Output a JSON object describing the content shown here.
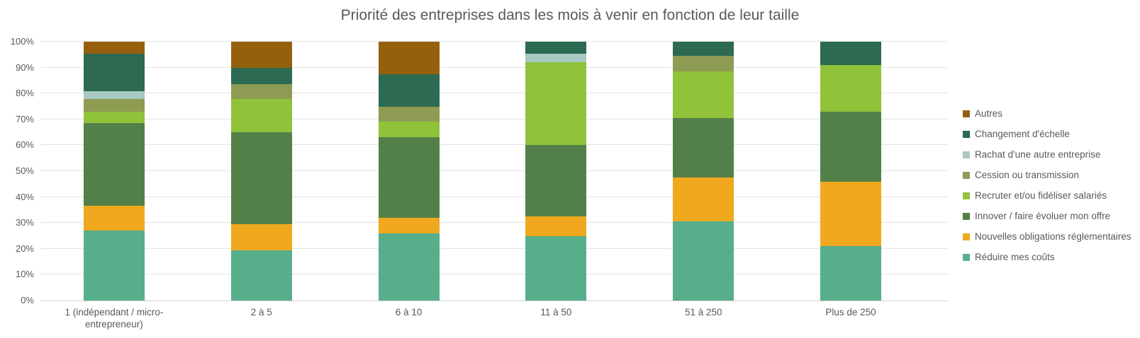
{
  "title": "Priorité des entreprises dans les mois à venir en fonction de leur taille",
  "chart_data": {
    "type": "bar",
    "subtype": "stacked-100-percent",
    "title": "Priorité des entreprises dans les mois à venir en fonction de leur taille",
    "xlabel": "",
    "ylabel": "",
    "ylim": [
      0,
      100
    ],
    "y_ticks": [
      "0%",
      "10%",
      "20%",
      "30%",
      "40%",
      "50%",
      "60%",
      "70%",
      "80%",
      "90%",
      "100%"
    ],
    "grid": "horizontal",
    "legend_position": "right",
    "categories": [
      "1 (indépendant / micro-entrepreneur)",
      "2 à 5",
      "6 à 10",
      "11 à 50",
      "51 à 250",
      "Plus de 250"
    ],
    "series": [
      {
        "name": "Réduire mes coûts",
        "color": "#57AE8B",
        "values": [
          27,
          19.5,
          26,
          25,
          30.5,
          21
        ]
      },
      {
        "name": "Nouvelles obligations réglementaires",
        "color": "#F0A91E",
        "values": [
          9.5,
          10,
          6,
          7.5,
          17,
          25
        ]
      },
      {
        "name": "Innover / faire évoluer mon offre",
        "color": "#538049",
        "values": [
          32,
          35.5,
          31,
          27.5,
          23,
          27
        ]
      },
      {
        "name": "Recruter et/ou fidéliser salariés",
        "color": "#90C23A",
        "values": [
          4.5,
          13,
          6,
          32,
          18,
          18
        ]
      },
      {
        "name": "Cession ou transmission",
        "color": "#8E9B53",
        "values": [
          5,
          5.5,
          6,
          0,
          6,
          0
        ]
      },
      {
        "name": "Rachat d'une autre entreprise",
        "color": "#A7C9C1",
        "values": [
          3,
          0,
          0,
          3.5,
          0,
          0
        ]
      },
      {
        "name": "Changement d'échelle",
        "color": "#2C6A51",
        "values": [
          14.5,
          6.5,
          12.5,
          4.5,
          5.5,
          9
        ]
      },
      {
        "name": "Autres",
        "color": "#95600D",
        "values": [
          4.5,
          10,
          12.5,
          0,
          0,
          0
        ]
      }
    ]
  },
  "colors": {
    "text": "#595959",
    "gridline": "#E4E4E4",
    "axis_line": "#D2D2D2",
    "background": "#FFFFFF"
  }
}
